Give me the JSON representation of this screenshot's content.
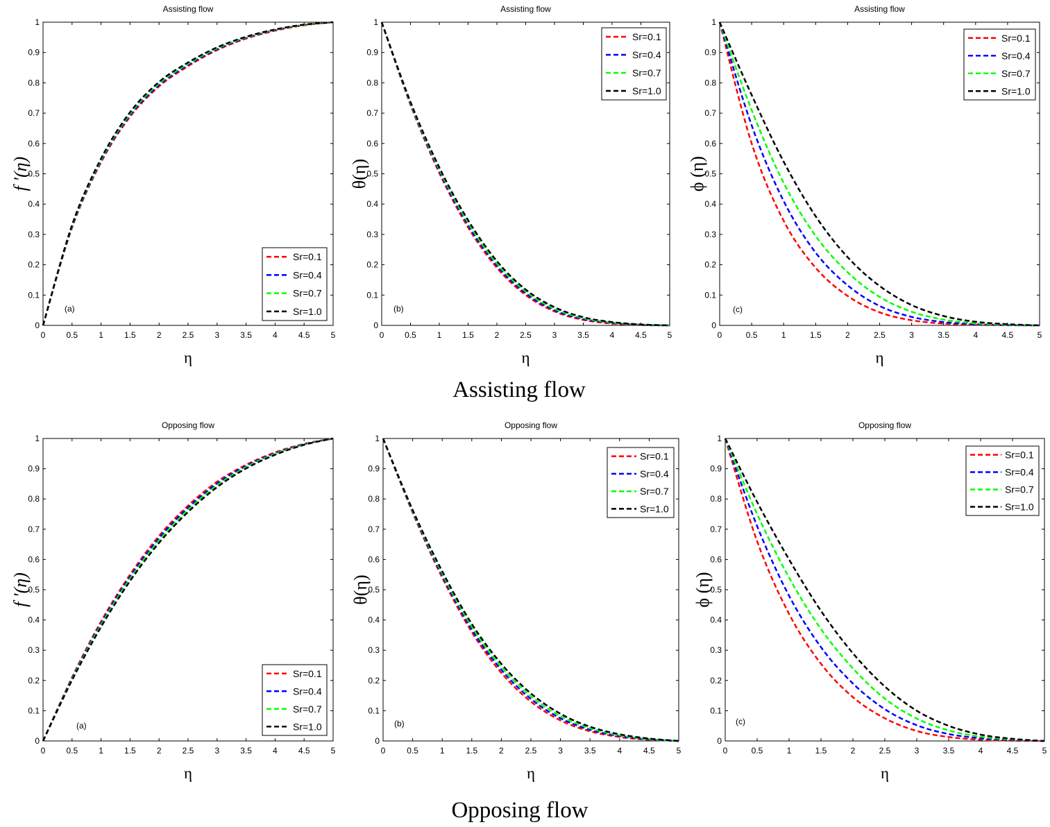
{
  "captions": {
    "assisting": "Assisting flow",
    "opposing": "Opposing flow"
  },
  "chart_data": [
    {
      "type": "line",
      "title": "Assisting flow",
      "xlabel": "η",
      "ylabel": "f ′(η)",
      "annotation": "(a)",
      "xlim": [
        0,
        5
      ],
      "ylim": [
        0,
        1
      ],
      "grid": false,
      "legend": "bottom-right",
      "xtick_labels": [
        "0",
        "0.5",
        "1",
        "1.5",
        "2",
        "2.5",
        "3",
        "3.5",
        "4",
        "4.5",
        "5"
      ],
      "ytick_labels": [
        "0",
        "0.1",
        "0.2",
        "0.3",
        "0.4",
        "0.5",
        "0.6",
        "0.7",
        "0.8",
        "0.9",
        "1"
      ],
      "x": [
        0,
        0.5,
        1,
        1.5,
        2,
        2.5,
        3,
        3.5,
        4,
        4.5,
        5
      ],
      "series": [
        {
          "name": "Sr=0.1",
          "color": "#ff0000",
          "line_style": "dashed",
          "values": [
            0,
            0.322,
            0.538,
            0.688,
            0.788,
            0.855,
            0.908,
            0.946,
            0.972,
            0.99,
            1.0
          ]
        },
        {
          "name": "Sr=0.4",
          "color": "#0000ff",
          "line_style": "dashed",
          "values": [
            0,
            0.325,
            0.542,
            0.693,
            0.793,
            0.859,
            0.911,
            0.948,
            0.974,
            0.991,
            1.0
          ]
        },
        {
          "name": "Sr=0.7",
          "color": "#00ff00",
          "line_style": "dashed",
          "values": [
            0,
            0.328,
            0.546,
            0.698,
            0.798,
            0.863,
            0.914,
            0.95,
            0.975,
            0.991,
            1.0
          ]
        },
        {
          "name": "Sr=1.0",
          "color": "#000000",
          "line_style": "dashed",
          "values": [
            0,
            0.331,
            0.55,
            0.703,
            0.803,
            0.867,
            0.917,
            0.952,
            0.976,
            0.992,
            1.0
          ]
        }
      ]
    },
    {
      "type": "line",
      "title": "Assisting flow",
      "xlabel": "η",
      "ylabel": "θ(η)",
      "annotation": "(b)",
      "xlim": [
        0,
        5
      ],
      "ylim": [
        0,
        1
      ],
      "grid": false,
      "legend": "top-right",
      "xtick_labels": [
        "0",
        "0.5",
        "1",
        "1.5",
        "2",
        "2.5",
        "3",
        "3.5",
        "4",
        "4.5",
        "5"
      ],
      "ytick_labels": [
        "0",
        "0.1",
        "0.2",
        "0.3",
        "0.4",
        "0.5",
        "0.6",
        "0.7",
        "0.8",
        "0.9",
        "1"
      ],
      "x": [
        0,
        0.5,
        1,
        1.5,
        2,
        2.5,
        3,
        3.5,
        4,
        4.5,
        5
      ],
      "series": [
        {
          "name": "Sr=0.1",
          "color": "#ff0000",
          "line_style": "dashed",
          "values": [
            1,
            0.728,
            0.503,
            0.323,
            0.19,
            0.1,
            0.046,
            0.018,
            0.006,
            0.001,
            0
          ]
        },
        {
          "name": "Sr=0.4",
          "color": "#0000ff",
          "line_style": "dashed",
          "values": [
            1,
            0.731,
            0.509,
            0.331,
            0.197,
            0.106,
            0.05,
            0.021,
            0.008,
            0.002,
            0
          ]
        },
        {
          "name": "Sr=0.7",
          "color": "#00ff00",
          "line_style": "dashed",
          "values": [
            1,
            0.734,
            0.515,
            0.339,
            0.204,
            0.112,
            0.055,
            0.024,
            0.009,
            0.003,
            0
          ]
        },
        {
          "name": "Sr=1.0",
          "color": "#000000",
          "line_style": "dashed",
          "values": [
            1,
            0.737,
            0.521,
            0.347,
            0.212,
            0.118,
            0.06,
            0.027,
            0.011,
            0.003,
            0
          ]
        }
      ]
    },
    {
      "type": "line",
      "title": "Assisting flow",
      "xlabel": "η",
      "ylabel": "ϕ (η)",
      "annotation": "(c)",
      "xlim": [
        0,
        5
      ],
      "ylim": [
        0,
        1
      ],
      "grid": false,
      "legend": "top-right",
      "xtick_labels": [
        "0",
        "0.5",
        "1",
        "1.5",
        "2",
        "2.5",
        "3",
        "3.5",
        "4",
        "4.5",
        "5"
      ],
      "ytick_labels": [
        "0",
        "0.1",
        "0.2",
        "0.3",
        "0.4",
        "0.5",
        "0.6",
        "0.7",
        "0.8",
        "0.9",
        "1"
      ],
      "x": [
        0,
        0.5,
        1,
        1.5,
        2,
        2.5,
        3,
        3.5,
        4,
        4.5,
        5
      ],
      "series": [
        {
          "name": "Sr=0.1",
          "color": "#ff0000",
          "line_style": "dashed",
          "values": [
            1,
            0.6,
            0.345,
            0.19,
            0.097,
            0.043,
            0.017,
            0.006,
            0.002,
            0.0005,
            0
          ]
        },
        {
          "name": "Sr=0.4",
          "color": "#0000ff",
          "line_style": "dashed",
          "values": [
            1,
            0.66,
            0.41,
            0.24,
            0.132,
            0.064,
            0.028,
            0.011,
            0.004,
            0.001,
            0
          ]
        },
        {
          "name": "Sr=0.7",
          "color": "#00ff00",
          "line_style": "dashed",
          "values": [
            1,
            0.71,
            0.47,
            0.295,
            0.175,
            0.094,
            0.045,
            0.019,
            0.007,
            0.002,
            0
          ]
        },
        {
          "name": "Sr=1.0",
          "color": "#000000",
          "line_style": "dashed",
          "values": [
            1,
            0.76,
            0.54,
            0.36,
            0.225,
            0.13,
            0.067,
            0.031,
            0.012,
            0.004,
            0
          ]
        }
      ]
    },
    {
      "type": "line",
      "title": "Opposing flow",
      "xlabel": "η",
      "ylabel": "f ′(η)",
      "annotation": "(a)",
      "xlim": [
        0,
        5
      ],
      "ylim": [
        0,
        1
      ],
      "grid": false,
      "legend": "bottom-right",
      "xtick_labels": [
        "0",
        "0.5",
        "1",
        "1.5",
        "2",
        "2.5",
        "3",
        "3.5",
        "4",
        "4.5",
        "5"
      ],
      "ytick_labels": [
        "0",
        "0.1",
        "0.2",
        "0.3",
        "0.4",
        "0.5",
        "0.6",
        "0.7",
        "0.8",
        "0.9",
        "1"
      ],
      "x": [
        0,
        0.5,
        1,
        1.5,
        2,
        2.5,
        3,
        3.5,
        4,
        4.5,
        5
      ],
      "series": [
        {
          "name": "Sr=0.1",
          "color": "#ff0000",
          "line_style": "dashed",
          "values": [
            0,
            0.21,
            0.395,
            0.55,
            0.678,
            0.778,
            0.857,
            0.913,
            0.954,
            0.982,
            1.0
          ]
        },
        {
          "name": "Sr=0.4",
          "color": "#0000ff",
          "line_style": "dashed",
          "values": [
            0,
            0.207,
            0.389,
            0.543,
            0.671,
            0.771,
            0.851,
            0.909,
            0.951,
            0.981,
            1.0
          ]
        },
        {
          "name": "Sr=0.7",
          "color": "#00ff00",
          "line_style": "dashed",
          "values": [
            0,
            0.204,
            0.383,
            0.536,
            0.663,
            0.764,
            0.845,
            0.905,
            0.949,
            0.98,
            1.0
          ]
        },
        {
          "name": "Sr=1.0",
          "color": "#000000",
          "line_style": "dashed",
          "values": [
            0,
            0.201,
            0.377,
            0.529,
            0.655,
            0.757,
            0.839,
            0.901,
            0.946,
            0.979,
            1.0
          ]
        }
      ]
    },
    {
      "type": "line",
      "title": "Opposing flow",
      "xlabel": "η",
      "ylabel": "θ(η)",
      "annotation": "(b)",
      "xlim": [
        0,
        5
      ],
      "ylim": [
        0,
        1
      ],
      "grid": false,
      "legend": "top-right",
      "xtick_labels": [
        "0",
        "0.5",
        "1",
        "1.5",
        "2",
        "2.5",
        "3",
        "3.5",
        "4",
        "4.5",
        "5"
      ],
      "ytick_labels": [
        "0",
        "0.1",
        "0.2",
        "0.3",
        "0.4",
        "0.5",
        "0.6",
        "0.7",
        "0.8",
        "0.9",
        "1"
      ],
      "x": [
        0,
        0.5,
        1,
        1.5,
        2,
        2.5,
        3,
        3.5,
        4,
        4.5,
        5
      ],
      "series": [
        {
          "name": "Sr=0.1",
          "color": "#ff0000",
          "line_style": "dashed",
          "values": [
            1,
            0.755,
            0.54,
            0.36,
            0.225,
            0.13,
            0.068,
            0.032,
            0.013,
            0.004,
            0
          ]
        },
        {
          "name": "Sr=0.4",
          "color": "#0000ff",
          "line_style": "dashed",
          "values": [
            1,
            0.758,
            0.547,
            0.369,
            0.235,
            0.139,
            0.075,
            0.037,
            0.016,
            0.005,
            0
          ]
        },
        {
          "name": "Sr=0.7",
          "color": "#00ff00",
          "line_style": "dashed",
          "values": [
            1,
            0.761,
            0.554,
            0.378,
            0.245,
            0.148,
            0.082,
            0.042,
            0.019,
            0.006,
            0
          ]
        },
        {
          "name": "Sr=1.0",
          "color": "#000000",
          "line_style": "dashed",
          "values": [
            1,
            0.764,
            0.561,
            0.387,
            0.255,
            0.157,
            0.09,
            0.047,
            0.022,
            0.008,
            0
          ]
        }
      ]
    },
    {
      "type": "line",
      "title": "Opposing flow",
      "xlabel": "η",
      "ylabel": "ϕ (η)",
      "annotation": "(c)",
      "xlim": [
        0,
        5
      ],
      "ylim": [
        0,
        1
      ],
      "grid": false,
      "legend": "top-right",
      "xtick_labels": [
        "0",
        "0.5",
        "1",
        "1.5",
        "2",
        "2.5",
        "3",
        "3.5",
        "4",
        "4.5",
        "5"
      ],
      "ytick_labels": [
        "0",
        "0.1",
        "0.2",
        "0.3",
        "0.4",
        "0.5",
        "0.6",
        "0.7",
        "0.8",
        "0.9",
        "1"
      ],
      "x": [
        0,
        0.5,
        1,
        1.5,
        2,
        2.5,
        3,
        3.5,
        4,
        4.5,
        5
      ],
      "series": [
        {
          "name": "Sr=0.1",
          "color": "#ff0000",
          "line_style": "dashed",
          "values": [
            1,
            0.66,
            0.42,
            0.255,
            0.145,
            0.075,
            0.033,
            0.013,
            0.004,
            0.001,
            0
          ]
        },
        {
          "name": "Sr=0.4",
          "color": "#0000ff",
          "line_style": "dashed",
          "values": [
            1,
            0.71,
            0.48,
            0.31,
            0.19,
            0.105,
            0.052,
            0.023,
            0.009,
            0.003,
            0
          ]
        },
        {
          "name": "Sr=0.7",
          "color": "#00ff00",
          "line_style": "dashed",
          "values": [
            1,
            0.75,
            0.54,
            0.37,
            0.24,
            0.14,
            0.074,
            0.035,
            0.014,
            0.005,
            0
          ]
        },
        {
          "name": "Sr=1.0",
          "color": "#000000",
          "line_style": "dashed",
          "values": [
            1,
            0.79,
            0.6,
            0.43,
            0.29,
            0.18,
            0.1,
            0.05,
            0.021,
            0.007,
            0
          ]
        }
      ]
    }
  ]
}
